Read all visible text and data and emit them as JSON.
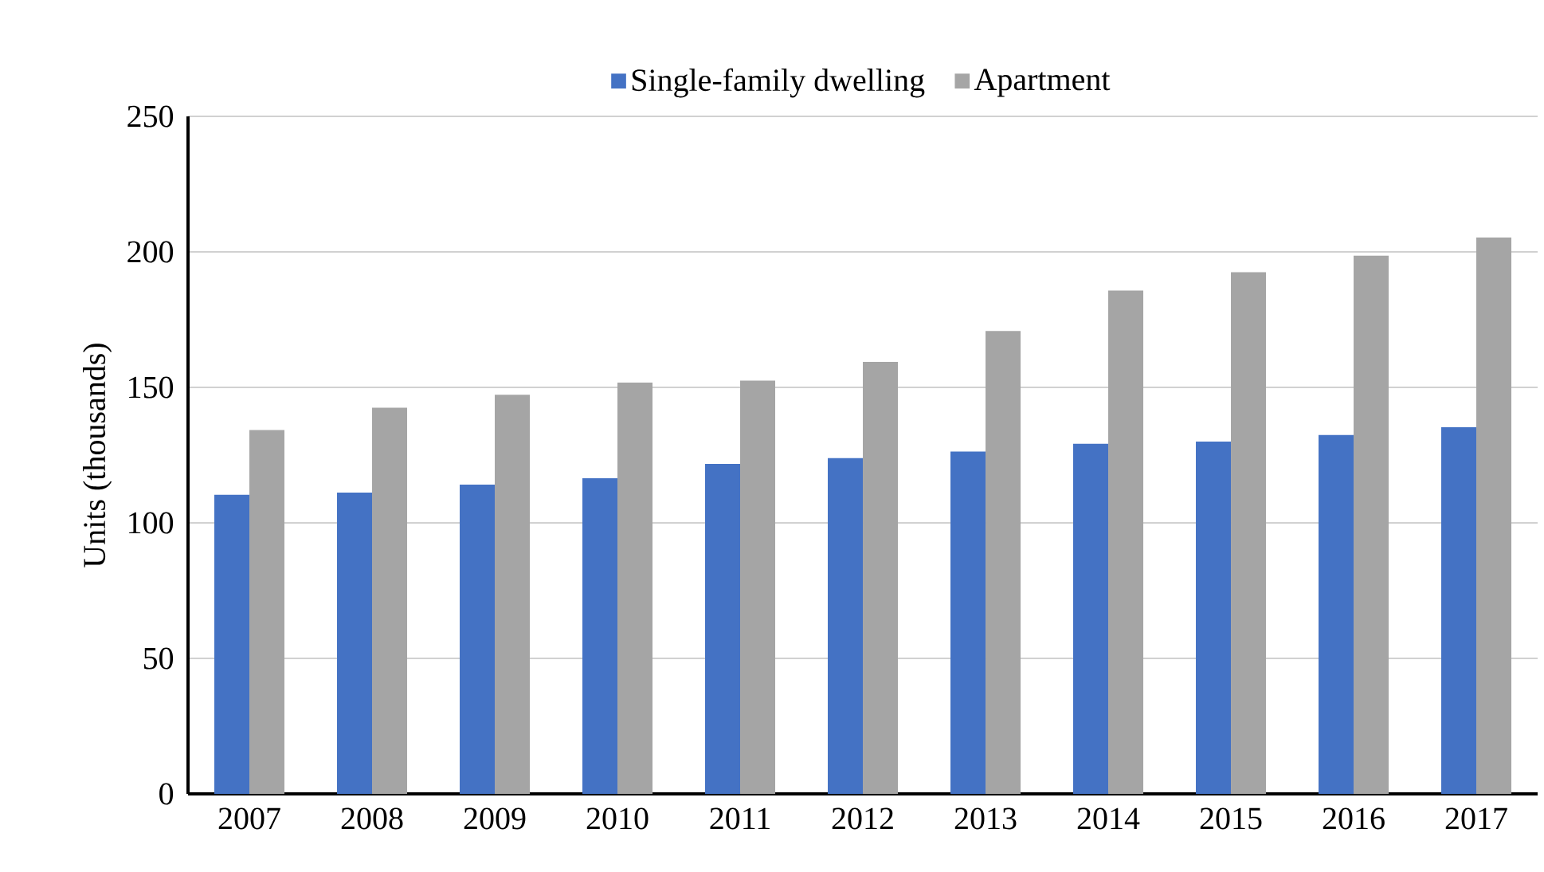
{
  "chart_data": {
    "type": "bar",
    "ylabel": "Units (thousands)",
    "categories": [
      "2007",
      "2008",
      "2009",
      "2010",
      "2011",
      "2012",
      "2013",
      "2014",
      "2015",
      "2016",
      "2017"
    ],
    "series": [
      {
        "name": "Single-family dwelling",
        "color": "#4472c4",
        "values": [
          110.4,
          111.2,
          114.1,
          116.5,
          121.8,
          123.9,
          126.3,
          129.2,
          130,
          132.4,
          135.3
        ]
      },
      {
        "name": "Apartment",
        "color": "#a5a5a5",
        "values": [
          134.3,
          142.5,
          147.3,
          151.8,
          152.5,
          159.4,
          170.8,
          185.7,
          192.5,
          198.6,
          205.3
        ]
      }
    ],
    "ylim": [
      0,
      250
    ],
    "yticks": [
      0,
      50,
      100,
      150,
      200,
      250
    ],
    "grid": "y",
    "legend": "top"
  }
}
